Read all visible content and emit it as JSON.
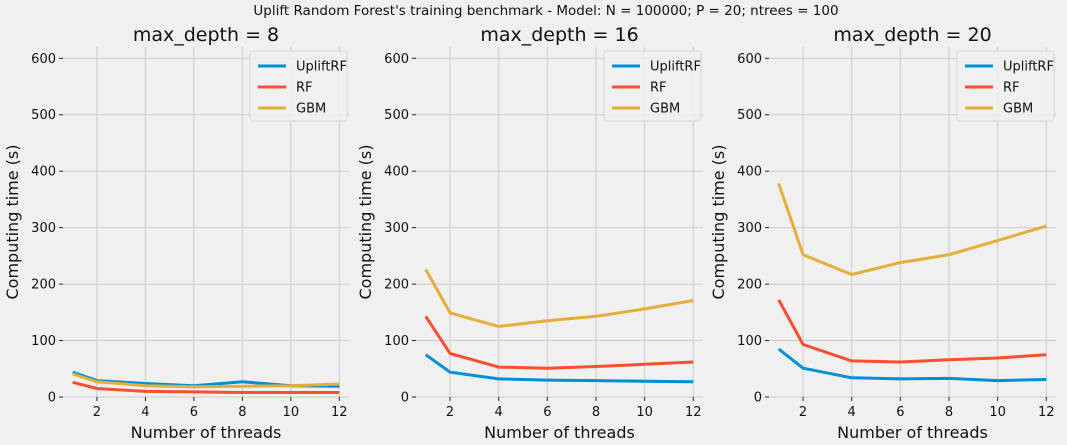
{
  "suptitle": "Uplift Random Forest's training benchmark - Model: N = 100000; P = 20; ntrees = 100",
  "colors": {
    "UpliftRF": "#008fd5",
    "RF": "#fc4f30",
    "GBM": "#e5ae38"
  },
  "chart_data": [
    {
      "type": "line",
      "title": "max_depth = 8",
      "xlabel": "Number of threads",
      "ylabel": "Computing time (s)",
      "xlim": [
        0.6,
        12.4
      ],
      "ylim": [
        0,
        620
      ],
      "xticks": [
        2,
        4,
        6,
        8,
        10,
        12
      ],
      "yticks": [
        0,
        100,
        200,
        300,
        400,
        500,
        600
      ],
      "grid": true,
      "legend": "top-right",
      "x": [
        1,
        2,
        4,
        6,
        8,
        10,
        12
      ],
      "series": [
        {
          "name": "UpliftRF",
          "values": [
            44,
            29,
            24,
            20,
            27,
            20,
            19
          ]
        },
        {
          "name": "RF",
          "values": [
            26,
            15,
            10,
            9,
            8,
            8,
            8
          ]
        },
        {
          "name": "GBM",
          "values": [
            41,
            27,
            20,
            18,
            19,
            20,
            23
          ]
        }
      ]
    },
    {
      "type": "line",
      "title": "max_depth = 16",
      "xlabel": "Number of threads",
      "ylabel": "Computing time (s)",
      "xlim": [
        0.6,
        12.4
      ],
      "ylim": [
        0,
        620
      ],
      "xticks": [
        2,
        4,
        6,
        8,
        10,
        12
      ],
      "yticks": [
        0,
        100,
        200,
        300,
        400,
        500,
        600
      ],
      "grid": true,
      "legend": "top-right",
      "x": [
        1,
        2,
        4,
        6,
        8,
        10,
        12
      ],
      "series": [
        {
          "name": "UpliftRF",
          "values": [
            75,
            44,
            32,
            30,
            29,
            28,
            27
          ]
        },
        {
          "name": "RF",
          "values": [
            143,
            77,
            53,
            51,
            54,
            58,
            62
          ]
        },
        {
          "name": "GBM",
          "values": [
            226,
            149,
            125,
            135,
            143,
            156,
            171
          ]
        }
      ]
    },
    {
      "type": "line",
      "title": "max_depth = 20",
      "xlabel": "Number of threads",
      "ylabel": "Computing time (s)",
      "xlim": [
        0.6,
        12.4
      ],
      "ylim": [
        0,
        620
      ],
      "xticks": [
        2,
        4,
        6,
        8,
        10,
        12
      ],
      "yticks": [
        0,
        100,
        200,
        300,
        400,
        500,
        600
      ],
      "grid": true,
      "legend": "top-right",
      "x": [
        1,
        2,
        4,
        6,
        8,
        10,
        12
      ],
      "series": [
        {
          "name": "UpliftRF",
          "values": [
            85,
            51,
            34,
            32,
            33,
            29,
            31
          ]
        },
        {
          "name": "RF",
          "values": [
            172,
            93,
            64,
            62,
            66,
            69,
            75
          ]
        },
        {
          "name": "GBM",
          "values": [
            378,
            252,
            217,
            238,
            252,
            277,
            303
          ]
        }
      ]
    }
  ]
}
